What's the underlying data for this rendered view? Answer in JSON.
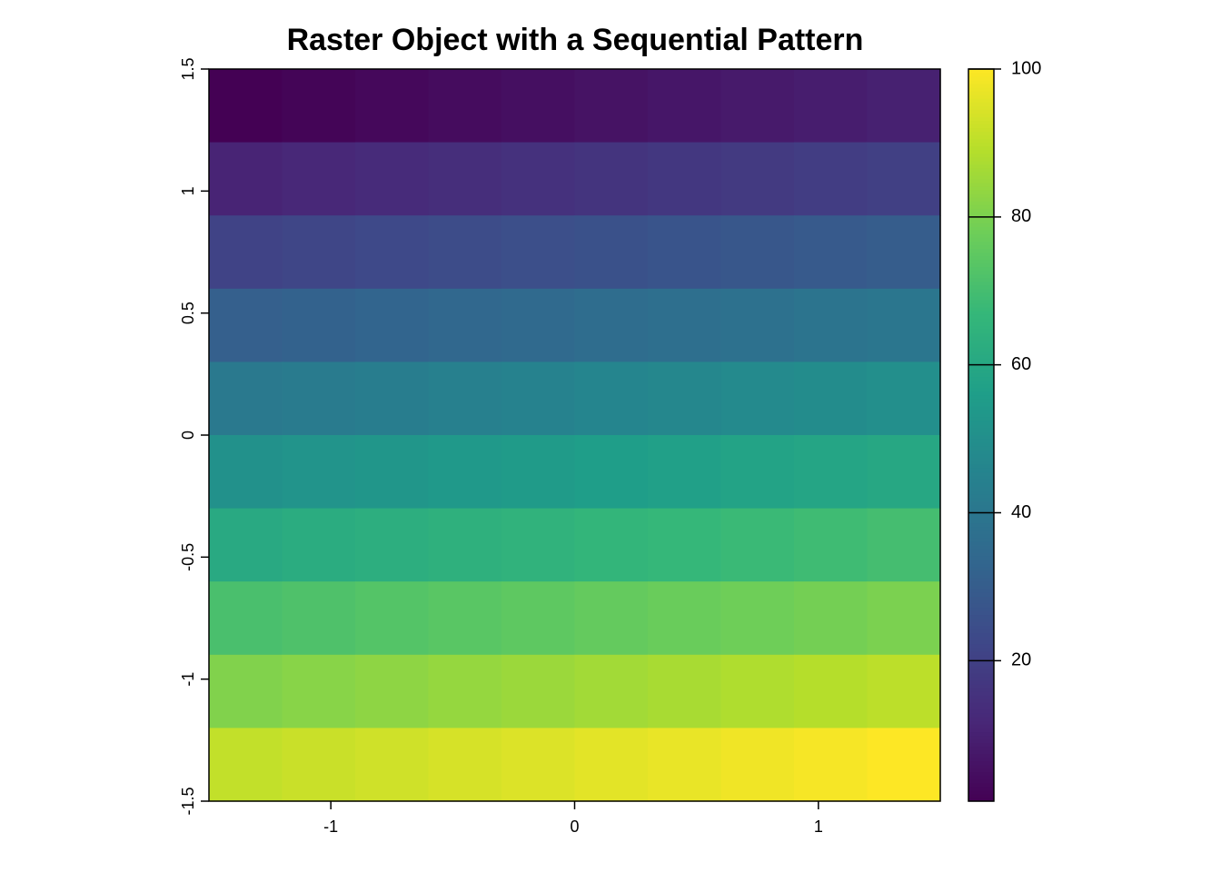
{
  "chart_data": {
    "type": "heatmap",
    "title": "Raster Object with a Sequential Pattern",
    "xlim": [
      -1.5,
      1.5
    ],
    "xticks": [
      -1,
      0,
      1
    ],
    "ylim": [
      -1.5,
      1.5
    ],
    "yticks": [
      -1.5,
      -1,
      -0.5,
      0,
      0.5,
      1,
      1.5
    ],
    "z": [
      [
        1,
        2,
        3,
        4,
        5,
        6,
        7,
        8,
        9,
        10
      ],
      [
        11,
        12,
        13,
        14,
        15,
        16,
        17,
        18,
        19,
        20
      ],
      [
        21,
        22,
        23,
        24,
        25,
        26,
        27,
        28,
        29,
        30
      ],
      [
        31,
        32,
        33,
        34,
        35,
        36,
        37,
        38,
        39,
        40
      ],
      [
        41,
        42,
        43,
        44,
        45,
        46,
        47,
        48,
        49,
        50
      ],
      [
        51,
        52,
        53,
        54,
        55,
        56,
        57,
        58,
        59,
        60
      ],
      [
        61,
        62,
        63,
        64,
        65,
        66,
        67,
        68,
        69,
        70
      ],
      [
        71,
        72,
        73,
        74,
        75,
        76,
        77,
        78,
        79,
        80
      ],
      [
        81,
        82,
        83,
        84,
        85,
        86,
        87,
        88,
        89,
        90
      ],
      [
        91,
        92,
        93,
        94,
        95,
        96,
        97,
        98,
        99,
        100
      ]
    ],
    "zlim": [
      1,
      100
    ],
    "zticks": [
      20,
      40,
      60,
      80,
      100
    ],
    "colormap": [
      "#440154",
      "#482878",
      "#3e4989",
      "#31688e",
      "#26828e",
      "#1f9e89",
      "#35b779",
      "#6ece58",
      "#b5de2b",
      "#fde725"
    ]
  }
}
